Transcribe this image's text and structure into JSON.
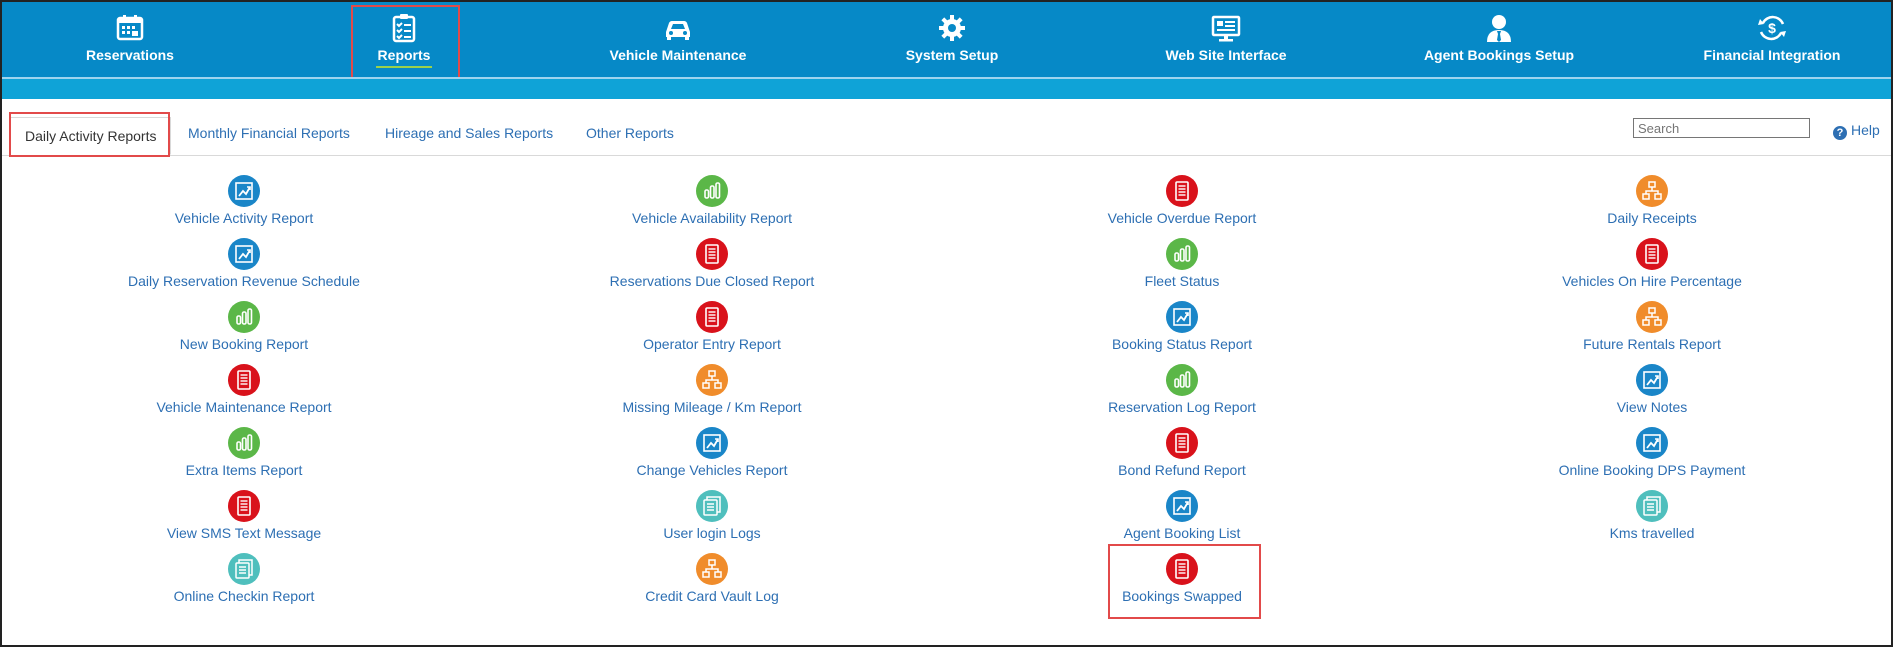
{
  "nav": [
    {
      "label": "Reservations",
      "icon": "calendar-icon"
    },
    {
      "label": "Reports",
      "icon": "clipboard-checklist-icon"
    },
    {
      "label": "Vehicle Maintenance",
      "icon": "car-icon"
    },
    {
      "label": "System Setup",
      "icon": "gear-icon"
    },
    {
      "label": "Web Site Interface",
      "icon": "monitor-icon"
    },
    {
      "label": "Agent Bookings Setup",
      "icon": "agent-user-icon"
    },
    {
      "label": "Financial Integration",
      "icon": "dollar-sync-icon"
    }
  ],
  "tabs": [
    "Daily Activity Reports",
    "Monthly Financial Reports",
    "Hireage and Sales Reports",
    "Other Reports"
  ],
  "search": {
    "placeholder": "Search"
  },
  "help": {
    "label": "Help"
  },
  "colors": {
    "nav_bg": "#0689c7",
    "accent_bar": "#0fa3d7",
    "link": "#2d6fb3",
    "highlight": "#e24a4a",
    "blue": "#1a86c8",
    "green": "#5bb748",
    "red": "#d9121b",
    "orange": "#f08c2b",
    "teal": "#4fbfbd"
  },
  "reports": [
    [
      {
        "label": "Vehicle Activity Report",
        "icon": "line-chart-icon",
        "color": "blue"
      },
      {
        "label": "Daily Reservation Revenue Schedule",
        "icon": "line-chart-icon",
        "color": "blue"
      },
      {
        "label": "New Booking Report",
        "icon": "bar-chart-icon",
        "color": "green"
      },
      {
        "label": "Vehicle Maintenance Report",
        "icon": "document-icon",
        "color": "red"
      },
      {
        "label": "Extra Items Report",
        "icon": "bar-chart-icon",
        "color": "green"
      },
      {
        "label": "View SMS Text Message",
        "icon": "document-icon",
        "color": "red"
      },
      {
        "label": "Online Checkin Report",
        "icon": "stacked-documents-icon",
        "color": "teal"
      }
    ],
    [
      {
        "label": "Vehicle Availability Report",
        "icon": "bar-chart-icon",
        "color": "green"
      },
      {
        "label": "Reservations Due Closed Report",
        "icon": "document-icon",
        "color": "red"
      },
      {
        "label": "Operator Entry Report",
        "icon": "document-icon",
        "color": "red"
      },
      {
        "label": "Missing Mileage / Km Report",
        "icon": "org-chart-icon",
        "color": "orange"
      },
      {
        "label": "Change Vehicles Report",
        "icon": "line-chart-icon",
        "color": "blue"
      },
      {
        "label": "User login Logs",
        "icon": "stacked-documents-icon",
        "color": "teal"
      },
      {
        "label": "Credit Card Vault Log",
        "icon": "org-chart-icon",
        "color": "orange"
      }
    ],
    [
      {
        "label": "Vehicle Overdue Report",
        "icon": "document-icon",
        "color": "red"
      },
      {
        "label": "Fleet Status",
        "icon": "bar-chart-icon",
        "color": "green"
      },
      {
        "label": "Booking Status Report",
        "icon": "line-chart-icon",
        "color": "blue"
      },
      {
        "label": "Reservation Log Report",
        "icon": "bar-chart-icon",
        "color": "green"
      },
      {
        "label": "Bond Refund Report",
        "icon": "document-icon",
        "color": "red"
      },
      {
        "label": "Agent Booking List",
        "icon": "line-chart-icon",
        "color": "blue"
      },
      {
        "label": "Bookings Swapped",
        "icon": "document-icon",
        "color": "red"
      }
    ],
    [
      {
        "label": "Daily Receipts",
        "icon": "org-chart-icon",
        "color": "orange"
      },
      {
        "label": "Vehicles On Hire Percentage",
        "icon": "document-icon",
        "color": "red"
      },
      {
        "label": "Future Rentals Report",
        "icon": "org-chart-icon",
        "color": "orange"
      },
      {
        "label": "View Notes",
        "icon": "line-chart-icon",
        "color": "blue"
      },
      {
        "label": "Online Booking DPS Payment",
        "icon": "line-chart-icon",
        "color": "blue"
      },
      {
        "label": "Kms travelled",
        "icon": "stacked-documents-icon",
        "color": "teal"
      }
    ]
  ]
}
